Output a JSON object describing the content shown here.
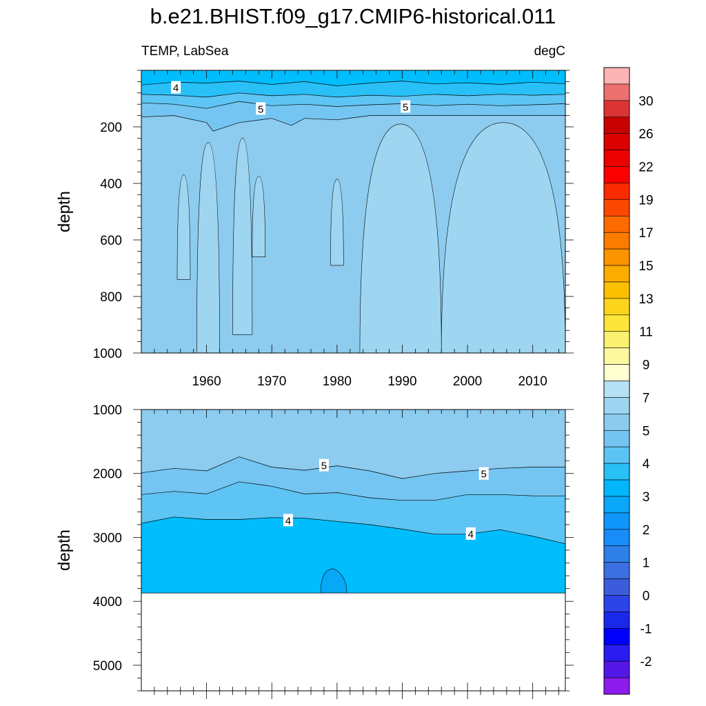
{
  "title": "b.e21.BHIST.f09_g17.CMIP6-historical.011",
  "left_string": "TEMP, LabSea",
  "right_string": "degC",
  "chart_data": [
    {
      "type": "heatmap",
      "panel": "upper",
      "ylabel": "depth",
      "xlabel": "",
      "xlim": [
        1950,
        2015
      ],
      "ylim": [
        1000,
        0
      ],
      "x_ticks": [
        "1960",
        "1970",
        "1980",
        "1990",
        "2000",
        "2010"
      ],
      "y_ticks": [
        "200",
        "400",
        "600",
        "800",
        "1000"
      ],
      "contour_labels": [
        "4",
        "5",
        "5"
      ],
      "series": [
        {
          "name": "",
          "level": 4.0,
          "x": [
            1950,
            1955,
            1960,
            1965,
            1970,
            1975,
            1980,
            1985,
            1990,
            1995,
            2000,
            2005,
            2010,
            2015
          ],
          "depth": [
            52,
            42,
            45,
            38,
            50,
            40,
            55,
            45,
            38,
            48,
            44,
            50,
            42,
            48
          ]
        },
        {
          "name": "",
          "level": 4.5,
          "x": [
            1950,
            1955,
            1960,
            1965,
            1970,
            1975,
            1980,
            1985,
            1990,
            1995,
            2000,
            2005,
            2010,
            2015
          ],
          "depth": [
            85,
            88,
            95,
            80,
            90,
            85,
            95,
            88,
            92,
            85,
            90,
            85,
            88,
            85
          ]
        },
        {
          "name": "",
          "level": 5.0,
          "x": [
            1950,
            1955,
            1960,
            1965,
            1970,
            1975,
            1980,
            1985,
            1990,
            1995,
            2000,
            2005,
            2010,
            2015
          ],
          "depth": [
            115,
            120,
            135,
            110,
            125,
            120,
            128,
            122,
            118,
            125,
            120,
            125,
            122,
            118
          ]
        },
        {
          "name": "",
          "level": 5.5,
          "x": [
            1950,
            1955,
            1960,
            1961,
            1965,
            1970,
            1973,
            1975,
            1980,
            1985,
            1990,
            1995,
            2000,
            2005,
            2010,
            2015
          ],
          "depth": [
            165,
            160,
            185,
            215,
            185,
            170,
            195,
            170,
            175,
            160,
            160,
            160,
            160,
            160,
            160,
            160
          ]
        }
      ],
      "deep_patches_6C": [
        {
          "x": [
            1955.5,
            1957.5
          ],
          "top": 370,
          "bottom": 740
        },
        {
          "x": [
            1958.5,
            1962
          ],
          "top": 255,
          "bottom": 1000
        },
        {
          "x": [
            1964,
            1967
          ],
          "top": 240,
          "bottom": 935
        },
        {
          "x": [
            1967,
            1969
          ],
          "top": 375,
          "bottom": 660
        },
        {
          "x": [
            1979,
            1981
          ],
          "top": 385,
          "bottom": 690
        },
        {
          "x": [
            1983.5,
            1996
          ],
          "top": 190,
          "bottom": 1000
        },
        {
          "x": [
            1996,
            2015
          ],
          "top": 185,
          "bottom": 1000
        }
      ]
    },
    {
      "type": "heatmap",
      "panel": "lower",
      "ylabel": "depth",
      "xlabel": "",
      "xlim": [
        1950,
        2015
      ],
      "ylim": [
        5400,
        1000
      ],
      "x_ticks": [],
      "y_ticks": [
        "1000",
        "2000",
        "3000",
        "4000",
        "5000"
      ],
      "ocean_bottom": 3870,
      "contour_labels": [
        "5",
        "5",
        "4",
        "4"
      ],
      "series": [
        {
          "name": "",
          "level": 5.5,
          "x": [
            1950,
            1955,
            1960,
            1965,
            1970,
            1975,
            1980,
            1985,
            1990,
            1995,
            2000,
            2005,
            2010,
            2015
          ],
          "depth": [
            1990,
            1920,
            1960,
            1740,
            1900,
            1950,
            1880,
            1960,
            2080,
            2000,
            1960,
            1920,
            1900,
            1900
          ]
        },
        {
          "name": "",
          "level": 4.5,
          "x": [
            1950,
            1955,
            1960,
            1965,
            1970,
            1975,
            1980,
            1985,
            1990,
            1995,
            2000,
            2005,
            2010,
            2015
          ],
          "depth": [
            2330,
            2280,
            2320,
            2130,
            2200,
            2320,
            2300,
            2380,
            2420,
            2420,
            2330,
            2330,
            2350,
            2350
          ]
        },
        {
          "name": "",
          "level": 4.0,
          "x": [
            1950,
            1955,
            1960,
            1965,
            1970,
            1975,
            1980,
            1985,
            1990,
            1995,
            2000,
            2005,
            2010,
            2015
          ],
          "depth": [
            2780,
            2680,
            2720,
            2720,
            2690,
            2700,
            2750,
            2800,
            2870,
            2950,
            2950,
            2880,
            2980,
            3100
          ]
        }
      ],
      "cold_patch_3_5C": {
        "x": [
          1977.5,
          1981.5
        ],
        "top": 3490,
        "bottom": 3870
      }
    }
  ],
  "colorbar": {
    "labels": [
      "30",
      "26",
      "22",
      "19",
      "17",
      "15",
      "13",
      "11",
      "9",
      "7",
      "5",
      "4",
      "3",
      "2",
      "1",
      "0",
      "-1",
      "-2"
    ],
    "colors": [
      "#fcb4b4",
      "#ec7070",
      "#dc3434",
      "#c80000",
      "#dc0000",
      "#ec0000",
      "#fc0000",
      "#fc2a00",
      "#fc4800",
      "#fc6a00",
      "#fc7c00",
      "#fc9400",
      "#fcac00",
      "#fcc000",
      "#fcd41c",
      "#fce63c",
      "#fcf070",
      "#fcf8a0",
      "#fefed0",
      "#b6e0f4",
      "#9ed6f2",
      "#8ccbee",
      "#74c4f2",
      "#5cc4f4",
      "#28c0f6",
      "#00b6fc",
      "#0aa6fa",
      "#1096fa",
      "#188cf8",
      "#2c80e8",
      "#3c70e0",
      "#3c5cdc",
      "#2c44e8",
      "#1a28ec",
      "#0000fa",
      "#2a1cf0",
      "#5418e6",
      "#8c1cec"
    ]
  },
  "colors": {
    "level_lt4": "#00bdfd",
    "level_4_4.5": "#29c0f7",
    "level_4.5_5": "#5ec4f3",
    "level_5_5.5": "#74c5f1",
    "level_5.5_6": "#8dcbef",
    "level_6_7": "#9ed6f1",
    "level_7plus": "#b3def4",
    "patch_3_5": "#07a8f6"
  }
}
